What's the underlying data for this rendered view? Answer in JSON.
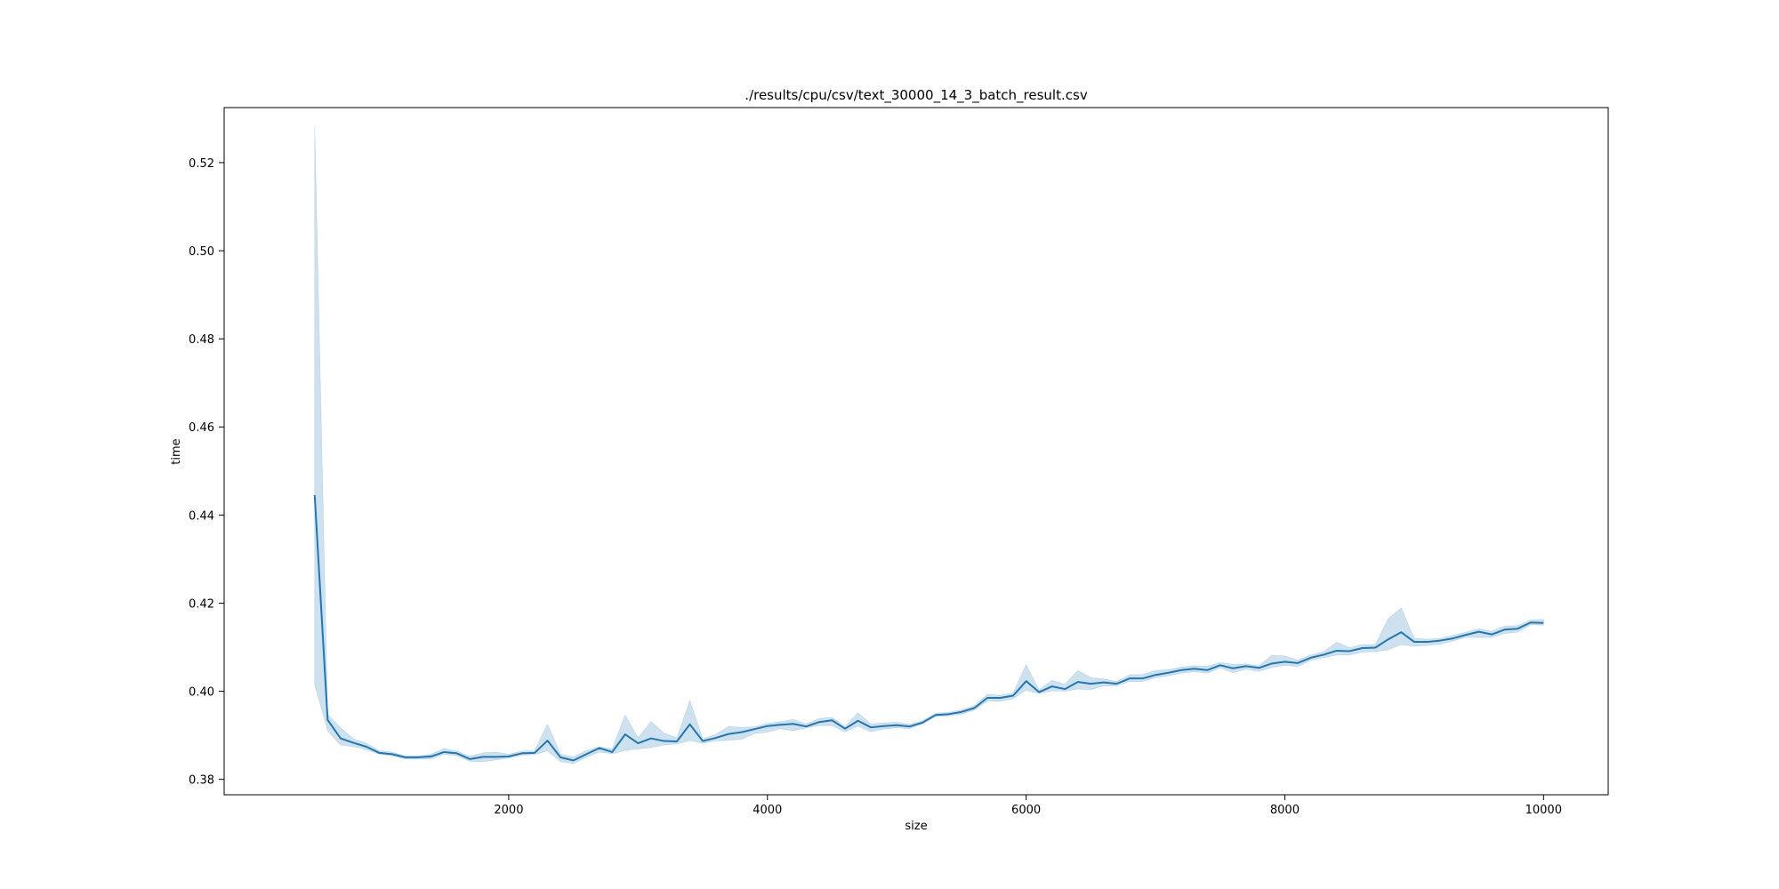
{
  "chart_data": {
    "type": "line",
    "title": "./results/cpu/csv/text_30000_14_3_batch_result.csv",
    "xlabel": "size",
    "ylabel": "time",
    "xlim": [
      -200,
      10500
    ],
    "ylim": [
      0.3765,
      0.5325
    ],
    "xticks": [
      2000,
      4000,
      6000,
      8000,
      10000
    ],
    "yticks": [
      0.38,
      0.4,
      0.42,
      0.44,
      0.46,
      0.48,
      0.5,
      0.52
    ],
    "xtick_labels": [
      "2000",
      "4000",
      "6000",
      "8000",
      "10000"
    ],
    "ytick_labels": [
      "0.38",
      "0.40",
      "0.42",
      "0.44",
      "0.46",
      "0.48",
      "0.50",
      "0.52"
    ],
    "grid": false,
    "line_color": "#1f77b4",
    "band_color": "#1f77b4",
    "series": [
      {
        "x": [
          500,
          600,
          700,
          800,
          900,
          1000,
          1100,
          1200,
          1300,
          1400,
          1500,
          1600,
          1700,
          1800,
          1900,
          2000,
          2100,
          2200,
          2300,
          2400,
          2500,
          2600,
          2700,
          2800,
          2900,
          3000,
          3100,
          3200,
          3300,
          3400,
          3500,
          3600,
          3700,
          3800,
          3900,
          4000,
          4100,
          4200,
          4300,
          4400,
          4500,
          4600,
          4700,
          4800,
          4900,
          5000,
          5100,
          5200,
          5300,
          5400,
          5500,
          5600,
          5700,
          5800,
          5900,
          6000,
          6100,
          6200,
          6300,
          6400,
          6500,
          6600,
          6700,
          6800,
          6900,
          7000,
          7100,
          7200,
          7300,
          7400,
          7500,
          7600,
          7700,
          7800,
          7900,
          8000,
          8100,
          8200,
          8300,
          8400,
          8500,
          8600,
          8700,
          8800,
          8900,
          9000,
          9100,
          9200,
          9300,
          9400,
          9500,
          9600,
          9700,
          9800,
          9900,
          10000
        ],
        "y": [
          0.4445,
          0.3935,
          0.3893,
          0.3883,
          0.3874,
          0.386,
          0.3857,
          0.385,
          0.385,
          0.3852,
          0.3862,
          0.3859,
          0.3846,
          0.3851,
          0.3851,
          0.3852,
          0.3859,
          0.386,
          0.3888,
          0.385,
          0.3843,
          0.3857,
          0.3871,
          0.3862,
          0.3902,
          0.3882,
          0.3893,
          0.3887,
          0.3886,
          0.3925,
          0.3887,
          0.3894,
          0.3903,
          0.3907,
          0.3914,
          0.3921,
          0.3924,
          0.3926,
          0.392,
          0.393,
          0.3934,
          0.3915,
          0.3933,
          0.3918,
          0.3921,
          0.3923,
          0.392,
          0.3929,
          0.3946,
          0.3948,
          0.3953,
          0.3962,
          0.3985,
          0.3985,
          0.399,
          0.4023,
          0.3998,
          0.4011,
          0.4005,
          0.4021,
          0.4017,
          0.402,
          0.4017,
          0.4029,
          0.4029,
          0.4037,
          0.4042,
          0.4048,
          0.4051,
          0.4048,
          0.4059,
          0.4052,
          0.4057,
          0.4053,
          0.4063,
          0.4067,
          0.4064,
          0.4076,
          0.4083,
          0.4092,
          0.4091,
          0.4098,
          0.4099,
          0.4118,
          0.4134,
          0.4112,
          0.4112,
          0.4115,
          0.412,
          0.4128,
          0.4135,
          0.4129,
          0.414,
          0.4142,
          0.4156,
          0.4155
        ],
        "lower": [
          0.4015,
          0.391,
          0.3878,
          0.3874,
          0.3868,
          0.3857,
          0.3853,
          0.3846,
          0.3846,
          0.3846,
          0.3857,
          0.3853,
          0.3841,
          0.384,
          0.3844,
          0.3848,
          0.3855,
          0.3856,
          0.3865,
          0.384,
          0.3836,
          0.385,
          0.3862,
          0.3858,
          0.3866,
          0.3869,
          0.3872,
          0.3878,
          0.388,
          0.3888,
          0.3882,
          0.3887,
          0.3889,
          0.3891,
          0.3904,
          0.3907,
          0.3915,
          0.391,
          0.3917,
          0.3922,
          0.3922,
          0.3908,
          0.3921,
          0.3908,
          0.3914,
          0.3917,
          0.3915,
          0.3926,
          0.3943,
          0.3944,
          0.3948,
          0.3957,
          0.3978,
          0.3977,
          0.3983,
          0.4002,
          0.3995,
          0.4001,
          0.4,
          0.4005,
          0.4004,
          0.4012,
          0.4012,
          0.4022,
          0.4022,
          0.4031,
          0.4035,
          0.4041,
          0.4044,
          0.4041,
          0.4053,
          0.4042,
          0.405,
          0.4045,
          0.4054,
          0.4059,
          0.4056,
          0.407,
          0.4076,
          0.4082,
          0.4082,
          0.4089,
          0.409,
          0.4094,
          0.4106,
          0.4102,
          0.4104,
          0.4107,
          0.4114,
          0.4123,
          0.4122,
          0.4122,
          0.4131,
          0.4134,
          0.4151,
          0.415
        ],
        "upper": [
          0.5285,
          0.3948,
          0.3917,
          0.3892,
          0.3882,
          0.3865,
          0.3862,
          0.3853,
          0.3853,
          0.3857,
          0.387,
          0.3864,
          0.3852,
          0.386,
          0.3862,
          0.3857,
          0.3864,
          0.3865,
          0.3925,
          0.3857,
          0.3851,
          0.3865,
          0.3874,
          0.3869,
          0.3946,
          0.3894,
          0.3931,
          0.3905,
          0.3894,
          0.3979,
          0.3892,
          0.3902,
          0.392,
          0.3918,
          0.3919,
          0.3927,
          0.3931,
          0.3936,
          0.3926,
          0.3938,
          0.3941,
          0.392,
          0.3951,
          0.3926,
          0.3928,
          0.393,
          0.3925,
          0.3933,
          0.395,
          0.3952,
          0.3958,
          0.3967,
          0.3993,
          0.3991,
          0.3996,
          0.406,
          0.4003,
          0.4025,
          0.4016,
          0.4047,
          0.4031,
          0.4028,
          0.4022,
          0.4037,
          0.4038,
          0.4047,
          0.4049,
          0.4055,
          0.4058,
          0.4057,
          0.4065,
          0.4061,
          0.4062,
          0.4058,
          0.4081,
          0.408,
          0.4071,
          0.4082,
          0.409,
          0.4111,
          0.4099,
          0.4106,
          0.4106,
          0.4165,
          0.4189,
          0.412,
          0.4118,
          0.412,
          0.4127,
          0.4134,
          0.4142,
          0.4136,
          0.4148,
          0.4149,
          0.4162,
          0.4163
        ]
      }
    ]
  }
}
